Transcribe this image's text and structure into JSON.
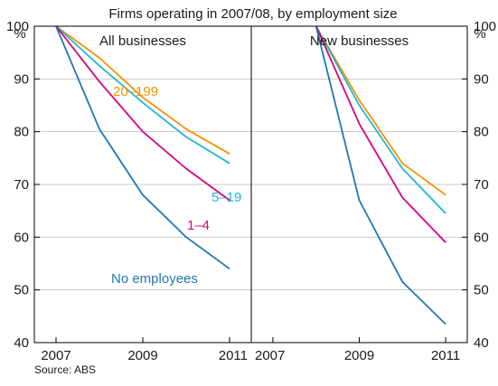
{
  "title": "Firms operating in 2007/08, by employment size",
  "source": "Source: ABS",
  "colors": {
    "No employees": "#1f77b4",
    "1–4": "#d6007e",
    "5–19": "#23b5d3",
    "20–199": "#f39200",
    "axis": "#000000",
    "grid": "#c8c8c8"
  },
  "chart_data": [
    {
      "type": "line",
      "panel_title": "All businesses",
      "unit_label_left": "%",
      "ylim": [
        40,
        100
      ],
      "yticks": [
        40,
        50,
        60,
        70,
        80,
        90,
        100
      ],
      "xlim": [
        2006.5,
        2011.5
      ],
      "xticks": [
        2007,
        2009,
        2011
      ],
      "grid": true,
      "series": [
        {
          "name": "20–199",
          "x": [
            2007,
            2008,
            2009,
            2010,
            2011
          ],
          "values": [
            100,
            94,
            86.5,
            80.5,
            75.8
          ]
        },
        {
          "name": "5–19",
          "x": [
            2007,
            2008,
            2009,
            2010,
            2011
          ],
          "values": [
            100,
            92.5,
            85.5,
            79,
            74
          ]
        },
        {
          "name": "1–4",
          "x": [
            2007,
            2008,
            2009,
            2010,
            2011
          ],
          "values": [
            100,
            89.5,
            80,
            73,
            67
          ]
        },
        {
          "name": "No employees",
          "x": [
            2007,
            2008,
            2009,
            2010,
            2011
          ],
          "values": [
            100,
            80.5,
            68,
            60,
            54
          ]
        }
      ]
    },
    {
      "type": "line",
      "panel_title": "New businesses",
      "unit_label_right": "%",
      "ylim": [
        40,
        100
      ],
      "yticks": [
        40,
        50,
        60,
        70,
        80,
        90,
        100
      ],
      "xlim": [
        2006.5,
        2011.5
      ],
      "xticks": [
        2007,
        2009,
        2011
      ],
      "grid": true,
      "series": [
        {
          "name": "20–199",
          "x": [
            2008,
            2009,
            2010,
            2011
          ],
          "values": [
            100,
            86,
            74,
            68
          ]
        },
        {
          "name": "5–19",
          "x": [
            2008,
            2009,
            2010,
            2011
          ],
          "values": [
            100,
            85,
            73,
            64.5
          ]
        },
        {
          "name": "1–4",
          "x": [
            2008,
            2009,
            2010,
            2011
          ],
          "values": [
            100,
            81.5,
            67.5,
            59
          ]
        },
        {
          "name": "No employees",
          "x": [
            2008,
            2009,
            2010,
            2011
          ],
          "values": [
            100,
            67,
            51.5,
            43.5
          ]
        }
      ]
    }
  ]
}
